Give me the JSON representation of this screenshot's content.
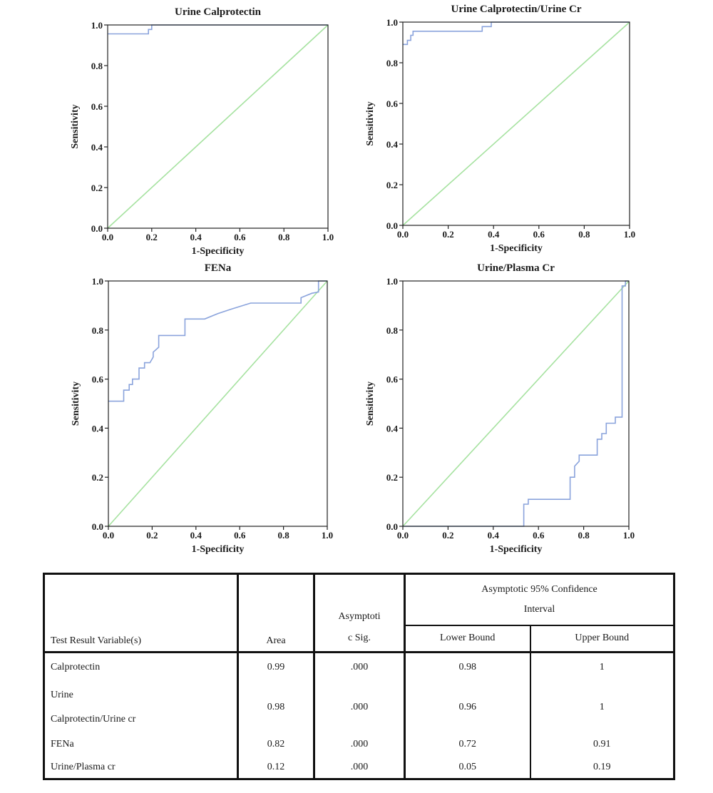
{
  "chart_data": [
    {
      "type": "line",
      "title": "Urine Calprotectin",
      "xlabel": "1-Specificity",
      "ylabel": "Sensitivity",
      "xlim": [
        0,
        1
      ],
      "ylim": [
        0,
        1
      ],
      "xticks": [
        "0.0",
        "0.2",
        "0.4",
        "0.6",
        "0.8",
        "1.0"
      ],
      "yticks": [
        "0.0",
        "0.2",
        "0.4",
        "0.6",
        "0.8",
        "1.0"
      ],
      "grid": false,
      "colors": {
        "roc": "#8aa3dc",
        "reference": "#a6e2a0"
      },
      "roc": [
        [
          0,
          0.956
        ],
        [
          0.185,
          0.956
        ],
        [
          0.185,
          0.978
        ],
        [
          0.2,
          0.978
        ],
        [
          0.2,
          1.0
        ],
        [
          1.0,
          1.0
        ]
      ],
      "reference": [
        [
          0,
          0
        ],
        [
          1,
          1
        ]
      ]
    },
    {
      "type": "line",
      "title": "Urine Calprotectin/Urine Cr",
      "xlabel": "1-Specificity",
      "ylabel": "Sensitivity",
      "xlim": [
        0,
        1
      ],
      "ylim": [
        0,
        1
      ],
      "xticks": [
        "0.0",
        "0.2",
        "0.4",
        "0.6",
        "0.8",
        "1.0"
      ],
      "yticks": [
        "0.0",
        "0.2",
        "0.4",
        "0.6",
        "0.8",
        "1.0"
      ],
      "grid": false,
      "colors": {
        "roc": "#8aa3dc",
        "reference": "#a6e2a0"
      },
      "roc": [
        [
          0,
          0.89
        ],
        [
          0.02,
          0.89
        ],
        [
          0.02,
          0.91
        ],
        [
          0.035,
          0.91
        ],
        [
          0.035,
          0.935
        ],
        [
          0.045,
          0.935
        ],
        [
          0.045,
          0.955
        ],
        [
          0.35,
          0.955
        ],
        [
          0.35,
          0.978
        ],
        [
          0.39,
          0.978
        ],
        [
          0.39,
          1.0
        ],
        [
          1.0,
          1.0
        ]
      ],
      "reference": [
        [
          0,
          0
        ],
        [
          1,
          1
        ]
      ]
    },
    {
      "type": "line",
      "title": "FENa",
      "xlabel": "1-Specificity",
      "ylabel": "Sensitivity",
      "xlim": [
        0,
        1
      ],
      "ylim": [
        0,
        1
      ],
      "xticks": [
        "0.0",
        "0.2",
        "0.4",
        "0.6",
        "0.8",
        "1.0"
      ],
      "yticks": [
        "0.0",
        "0.2",
        "0.4",
        "0.6",
        "0.8",
        "1.0"
      ],
      "grid": false,
      "colors": {
        "roc": "#8aa3dc",
        "reference": "#a6e2a0"
      },
      "roc": [
        [
          0,
          0.51
        ],
        [
          0.07,
          0.51
        ],
        [
          0.07,
          0.555
        ],
        [
          0.095,
          0.555
        ],
        [
          0.095,
          0.578
        ],
        [
          0.11,
          0.578
        ],
        [
          0.11,
          0.6
        ],
        [
          0.14,
          0.6
        ],
        [
          0.14,
          0.645
        ],
        [
          0.165,
          0.645
        ],
        [
          0.165,
          0.667
        ],
        [
          0.19,
          0.667
        ],
        [
          0.205,
          0.69
        ],
        [
          0.205,
          0.71
        ],
        [
          0.23,
          0.73
        ],
        [
          0.23,
          0.778
        ],
        [
          0.35,
          0.778
        ],
        [
          0.35,
          0.845
        ],
        [
          0.44,
          0.845
        ],
        [
          0.5,
          0.867
        ],
        [
          0.56,
          0.885
        ],
        [
          0.65,
          0.91
        ],
        [
          0.88,
          0.91
        ],
        [
          0.88,
          0.932
        ],
        [
          0.93,
          0.95
        ],
        [
          0.96,
          0.955
        ],
        [
          0.96,
          1.0
        ],
        [
          1.0,
          1.0
        ]
      ],
      "reference": [
        [
          0,
          0
        ],
        [
          1,
          1
        ]
      ]
    },
    {
      "type": "line",
      "title": "Urine/Plasma Cr",
      "xlabel": "1-Specificity",
      "ylabel": "Sensitivity",
      "xlim": [
        0,
        1
      ],
      "ylim": [
        0,
        1
      ],
      "xticks": [
        "0.0",
        "0.2",
        "0.4",
        "0.6",
        "0.8",
        "1.0"
      ],
      "yticks": [
        "0.0",
        "0.2",
        "0.4",
        "0.6",
        "0.8",
        "1.0"
      ],
      "grid": false,
      "colors": {
        "roc": "#8aa3dc",
        "reference": "#a6e2a0"
      },
      "roc": [
        [
          0,
          0
        ],
        [
          0.535,
          0
        ],
        [
          0.535,
          0.09
        ],
        [
          0.555,
          0.09
        ],
        [
          0.555,
          0.11
        ],
        [
          0.74,
          0.11
        ],
        [
          0.74,
          0.2
        ],
        [
          0.76,
          0.2
        ],
        [
          0.76,
          0.245
        ],
        [
          0.78,
          0.265
        ],
        [
          0.78,
          0.29
        ],
        [
          0.86,
          0.29
        ],
        [
          0.86,
          0.355
        ],
        [
          0.88,
          0.355
        ],
        [
          0.88,
          0.378
        ],
        [
          0.9,
          0.378
        ],
        [
          0.9,
          0.42
        ],
        [
          0.94,
          0.42
        ],
        [
          0.94,
          0.445
        ],
        [
          0.97,
          0.445
        ],
        [
          0.97,
          0.98
        ],
        [
          0.985,
          0.98
        ],
        [
          0.985,
          1.0
        ],
        [
          1.0,
          1.0
        ]
      ],
      "reference": [
        [
          0,
          0
        ],
        [
          1,
          1
        ]
      ]
    }
  ],
  "table": {
    "headers": {
      "variable": "Test Result Variable(s)",
      "area": "Area",
      "sig_line1": "Asymptoti",
      "sig_line2": "c Sig.",
      "ci_line1": "Asymptotic 95% Confidence",
      "ci_line2": "Interval",
      "lower": "Lower Bound",
      "upper": "Upper Bound"
    },
    "rows": [
      {
        "name_line1": "Calprotectin",
        "name_line2": "",
        "area": "0.99",
        "sig": ".000",
        "lower": "0.98",
        "upper": "1"
      },
      {
        "name_line1": "Urine",
        "name_line2": "Calprotectin/Urine cr",
        "area": "0.98",
        "sig": ".000",
        "lower": "0.96",
        "upper": "1"
      },
      {
        "name_line1": "FENa",
        "name_line2": "",
        "area": "0.82",
        "sig": ".000",
        "lower": "0.72",
        "upper": "0.91"
      },
      {
        "name_line1": "Urine/Plasma cr",
        "name_line2": "",
        "area": "0.12",
        "sig": ".000",
        "lower": "0.05",
        "upper": "0.19"
      }
    ]
  }
}
